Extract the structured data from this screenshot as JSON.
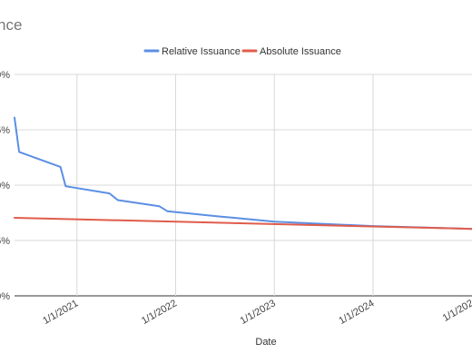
{
  "chart_data": {
    "type": "line",
    "title": "nce",
    "xlabel": "Date",
    "ylabel": "",
    "x_ticks": [
      "1/1/2021",
      "1/1/2022",
      "1/1/2023",
      "1/1/2024",
      "1/1/202"
    ],
    "y_ticks": [
      "0%",
      "5%",
      "0%",
      "5%",
      "0%"
    ],
    "legend_position": "top",
    "grid": true,
    "x_range": [
      "2020-05-15",
      "2025-01-01"
    ],
    "y_range": [
      0,
      4
    ],
    "series": [
      {
        "name": "Relative Issuance",
        "color": "#5b8fe3",
        "points": [
          [
            "2020-05-15",
            3.22
          ],
          [
            "2020-06-01",
            2.6
          ],
          [
            "2020-11-01",
            2.33
          ],
          [
            "2020-11-20",
            1.98
          ],
          [
            "2021-05-01",
            1.85
          ],
          [
            "2021-06-01",
            1.73
          ],
          [
            "2021-11-01",
            1.62
          ],
          [
            "2021-12-01",
            1.53
          ],
          [
            "2022-06-01",
            1.44
          ],
          [
            "2023-01-01",
            1.34
          ],
          [
            "2024-01-01",
            1.26
          ],
          [
            "2025-01-01",
            1.21
          ]
        ]
      },
      {
        "name": "Absolute Issuance",
        "color": "#e05c4b",
        "points": [
          [
            "2020-05-15",
            1.41
          ],
          [
            "2025-01-01",
            1.21
          ]
        ]
      }
    ]
  }
}
